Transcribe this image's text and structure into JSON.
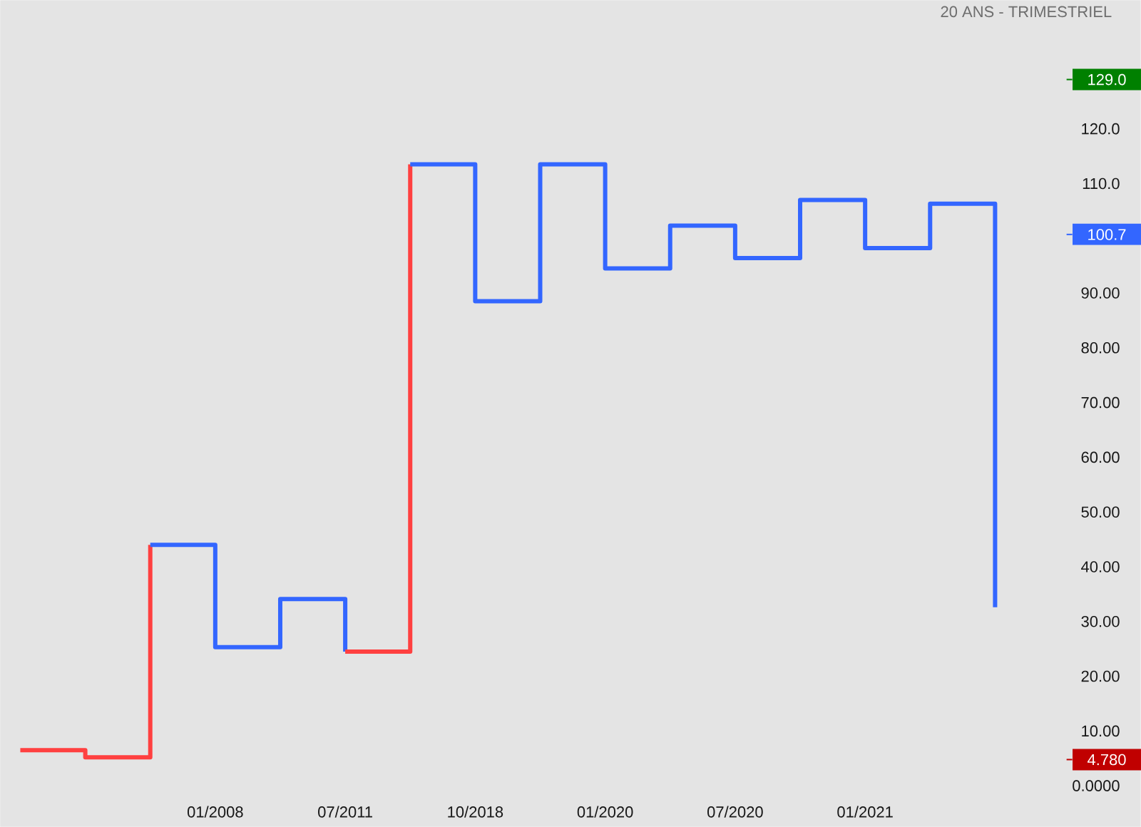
{
  "chart_data": {
    "type": "step",
    "title": "20 ANS - TRIMESTRIEL",
    "categories": [
      null,
      null,
      null,
      "01/2008",
      null,
      "07/2011",
      null,
      "10/2018",
      null,
      "01/2020",
      null,
      "07/2020",
      null,
      "01/2021",
      null,
      null
    ],
    "ylim": [
      -7.5,
      143.5
    ],
    "yticks": [
      {
        "value": 0,
        "label": "0.0000"
      },
      {
        "value": 10,
        "label": "10.00"
      },
      {
        "value": 20,
        "label": "20.00"
      },
      {
        "value": 30,
        "label": "30.00"
      },
      {
        "value": 40,
        "label": "40.00"
      },
      {
        "value": 50,
        "label": "50.00"
      },
      {
        "value": 60,
        "label": "60.00"
      },
      {
        "value": 70,
        "label": "70.00"
      },
      {
        "value": 80,
        "label": "80.00"
      },
      {
        "value": 90,
        "label": "90.00"
      },
      {
        "value": 110,
        "label": "110.0"
      },
      {
        "value": 120,
        "label": "120.0"
      }
    ],
    "series": [
      {
        "color": "#ff4040",
        "values": [
          6.5,
          5.2,
          44,
          null,
          null,
          null,
          null,
          null,
          null,
          null,
          null,
          null,
          null,
          null,
          null,
          null
        ]
      },
      {
        "color": "#3366ff",
        "values": [
          null,
          null,
          44,
          25.3,
          34.1,
          24.5,
          null,
          null,
          null,
          null,
          null,
          null,
          null,
          null,
          null,
          null
        ]
      },
      {
        "color": "#ff4040",
        "values": [
          null,
          null,
          null,
          null,
          null,
          24.5,
          113.5,
          null,
          null,
          null,
          null,
          null,
          null,
          null,
          null,
          null
        ]
      },
      {
        "color": "#3366ff",
        "values": [
          null,
          null,
          null,
          null,
          null,
          null,
          113.5,
          88.5,
          113.5,
          94.5,
          102.3,
          96.4,
          107,
          98.2,
          106.3,
          32.6
        ]
      }
    ],
    "ref_lines": [
      {
        "axis": "y",
        "value": 129,
        "label": "129.0",
        "color": "#008000"
      },
      {
        "axis": "y",
        "value": 100.7,
        "label": "100.7",
        "color": "#3366ff"
      },
      {
        "axis": "y",
        "value": 4.78,
        "label": "4.780",
        "color": "#c00000"
      }
    ]
  }
}
